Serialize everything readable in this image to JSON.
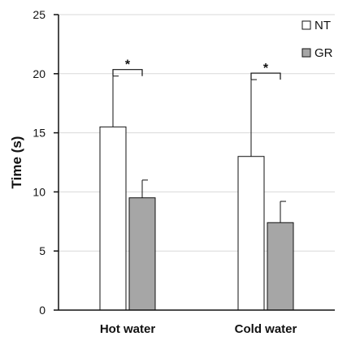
{
  "chart_data": {
    "type": "bar",
    "categories": [
      "Hot water",
      "Cold water"
    ],
    "series": [
      {
        "name": "NT",
        "values": [
          15.5,
          13.0
        ],
        "errors": [
          4.3,
          6.5
        ],
        "color": "#ffffff"
      },
      {
        "name": "GR",
        "values": [
          9.5,
          7.4
        ],
        "errors": [
          1.5,
          1.8
        ],
        "color": "#a6a6a6"
      }
    ],
    "ylabel": "Time (s)",
    "xlabel": "",
    "title": "",
    "ylim": [
      0,
      25
    ],
    "yticks": [
      0,
      5,
      10,
      15,
      20,
      25
    ],
    "grid": true,
    "legend_position": "top-right",
    "annotations": [
      {
        "category": "Hot water",
        "text": "*"
      },
      {
        "category": "Cold water",
        "text": "*"
      }
    ]
  }
}
